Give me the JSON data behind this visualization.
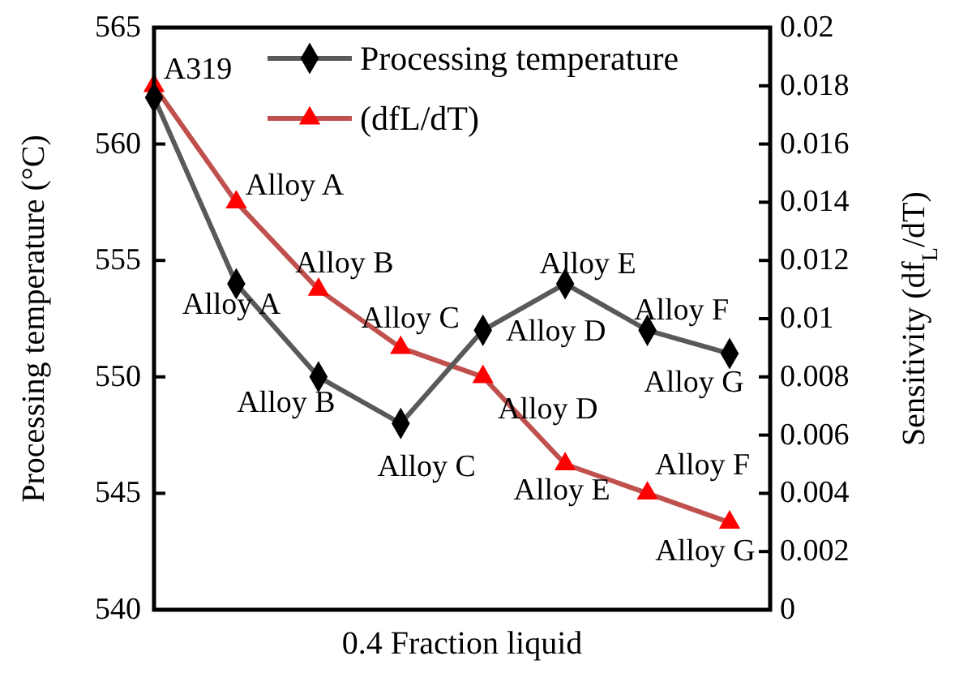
{
  "chart_data": {
    "type": "line",
    "xlabel": "0.4 Fraction liquid",
    "ylabel": "Processing temperature (°C)",
    "y2label": "Sensitivity (df$_{L}$/dT)",
    "categories": [
      null,
      null,
      null,
      null,
      null,
      null,
      null,
      null
    ],
    "ylim": [
      540,
      565
    ],
    "yticks": [
      540,
      545,
      550,
      555,
      560,
      565
    ],
    "y2lim": [
      0,
      0.02
    ],
    "y2ticks": [
      0,
      0.002,
      0.004,
      0.006,
      0.008,
      0.01,
      0.012,
      0.014,
      0.016,
      0.018,
      0.02
    ],
    "legend": "top right",
    "grid": false,
    "series": [
      {
        "name": "Processing temperature",
        "color": "#595959",
        "marker": "diamond",
        "values": [
          562,
          554,
          550,
          548,
          552,
          554,
          552,
          551
        ],
        "value_labels": [
          null,
          "Alloy A",
          "Alloy B",
          "Alloy C",
          "Alloy D",
          "Alloy E",
          "Alloy F",
          "Alloy G"
        ]
      },
      {
        "name": "(dfL/dT)",
        "color": "#c0504d",
        "marker": "triangle",
        "axis": "y2",
        "values": [
          0.018,
          0.014,
          0.011,
          0.009,
          0.008,
          0.005,
          0.004,
          0.003
        ],
        "value_labels": [
          "A319",
          "Alloy A",
          "Alloy B",
          "Alloy C",
          "Alloy D",
          "Alloy E",
          "Alloy F",
          "Alloy G"
        ]
      }
    ]
  }
}
